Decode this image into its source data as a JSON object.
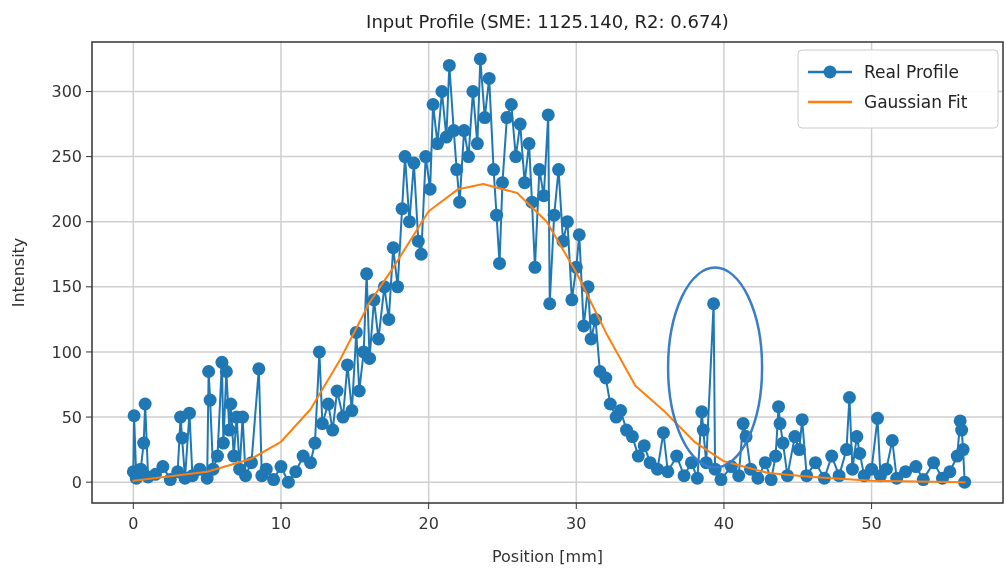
{
  "chart_data": {
    "type": "line",
    "title": "Input Profile (SME: 1125.140, R2: 0.674)",
    "xlabel": "Position [mm]",
    "ylabel": "Intensity",
    "xlim": [
      -2.8,
      58.9
    ],
    "ylim": [
      -16,
      338
    ],
    "xticks": [
      0,
      10,
      20,
      30,
      40,
      50
    ],
    "yticks": [
      0,
      50,
      100,
      150,
      200,
      250,
      300
    ],
    "grid": true,
    "legend": "top right",
    "series": [
      {
        "name": "Real Profile",
        "color": "#1f77b4",
        "marker": "circle",
        "x": [
          0,
          0.05,
          0.2,
          0.5,
          0.7,
          0.8,
          1.0,
          1.5,
          2.0,
          2.5,
          3.0,
          3.2,
          3.3,
          3.5,
          3.8,
          4.0,
          4.5,
          5.0,
          5.1,
          5.2,
          5.4,
          5.7,
          6.0,
          6.1,
          6.3,
          6.5,
          6.6,
          6.8,
          7.0,
          7.2,
          7.4,
          7.6,
          8.0,
          8.5,
          8.7,
          9.0,
          9.5,
          10.0,
          10.5,
          11.0,
          11.5,
          12.0,
          12.3,
          12.6,
          12.8,
          13.2,
          13.5,
          13.8,
          14.2,
          14.5,
          14.8,
          15.1,
          15.3,
          15.6,
          15.8,
          16.0,
          16.3,
          16.6,
          17.0,
          17.3,
          17.6,
          17.9,
          18.2,
          18.4,
          18.7,
          19.0,
          19.3,
          19.5,
          19.8,
          20.1,
          20.3,
          20.6,
          20.9,
          21.2,
          21.4,
          21.7,
          21.9,
          22.1,
          22.4,
          22.7,
          23.0,
          23.3,
          23.5,
          23.8,
          24.1,
          24.4,
          24.6,
          24.8,
          25.0,
          25.3,
          25.6,
          25.9,
          26.2,
          26.5,
          26.8,
          27.0,
          27.2,
          27.5,
          27.8,
          28.1,
          28.2,
          28.5,
          28.8,
          29.1,
          29.4,
          29.7,
          30.0,
          30.2,
          30.5,
          30.8,
          31.0,
          31.3,
          31.6,
          32.0,
          32.3,
          32.7,
          33.0,
          33.4,
          33.8,
          34.2,
          34.6,
          35.0,
          35.5,
          35.9,
          36.2,
          36.8,
          37.3,
          37.8,
          38.2,
          38.5,
          38.6,
          38.8,
          39.3,
          39.4,
          39.8,
          40.5,
          41.0,
          41.3,
          41.5,
          41.8,
          42.3,
          42.8,
          43.2,
          43.5,
          43.7,
          43.8,
          44.0,
          44.3,
          44.8,
          45.1,
          45.3,
          45.6,
          46.2,
          46.8,
          47.3,
          47.8,
          48.3,
          48.5,
          48.7,
          49.0,
          49.2,
          49.5,
          50.0,
          50.4,
          50.6,
          51.0,
          51.4,
          51.7,
          52.3,
          53.0,
          53.5,
          54.2,
          54.8,
          55.3,
          55.8,
          56.0,
          56.1,
          56.2,
          56.3
        ],
        "values": [
          8,
          51,
          3,
          10,
          30,
          60,
          4,
          6,
          12,
          2,
          8,
          50,
          34,
          3,
          53,
          5,
          10,
          3,
          85,
          63,
          10,
          20,
          92,
          30,
          85,
          40,
          60,
          20,
          50,
          10,
          50,
          5,
          15,
          87,
          5,
          10,
          2,
          12,
          0,
          8,
          20,
          15,
          30,
          100,
          45,
          60,
          40,
          70,
          50,
          90,
          55,
          115,
          70,
          100,
          160,
          95,
          140,
          110,
          150,
          125,
          180,
          150,
          210,
          250,
          200,
          245,
          185,
          175,
          250,
          225,
          290,
          260,
          300,
          265,
          320,
          270,
          240,
          215,
          270,
          250,
          300,
          260,
          325,
          280,
          310,
          240,
          205,
          168,
          230,
          280,
          290,
          250,
          275,
          230,
          260,
          215,
          165,
          240,
          220,
          282,
          137,
          205,
          240,
          185,
          200,
          140,
          165,
          190,
          120,
          150,
          110,
          125,
          85,
          80,
          60,
          50,
          55,
          40,
          35,
          20,
          28,
          15,
          10,
          38,
          8,
          20,
          5,
          15,
          3,
          54,
          40,
          15,
          137,
          10,
          2,
          12,
          5,
          45,
          35,
          10,
          3,
          15,
          2,
          20,
          58,
          45,
          30,
          5,
          35,
          25,
          48,
          5,
          15,
          3,
          20,
          5,
          25,
          65,
          10,
          35,
          22,
          5,
          10,
          49,
          5,
          10,
          32,
          3,
          8,
          12,
          2,
          15,
          3,
          8,
          20,
          47,
          40,
          25,
          0
        ]
      },
      {
        "name": "Gaussian Fit",
        "color": "#ff7f0e",
        "marker": "none",
        "x": [
          0,
          5,
          8,
          10,
          12,
          14,
          16,
          17.5,
          20,
          22,
          23.7,
          26,
          28,
          30,
          32,
          34,
          36,
          38,
          40,
          43,
          46,
          50,
          56.3
        ],
        "values": [
          1,
          8,
          18,
          31,
          56,
          94,
          138,
          163,
          208,
          225,
          229,
          222,
          200,
          161,
          115,
          74,
          54,
          31,
          16,
          7,
          4,
          1,
          0
        ]
      }
    ]
  }
}
